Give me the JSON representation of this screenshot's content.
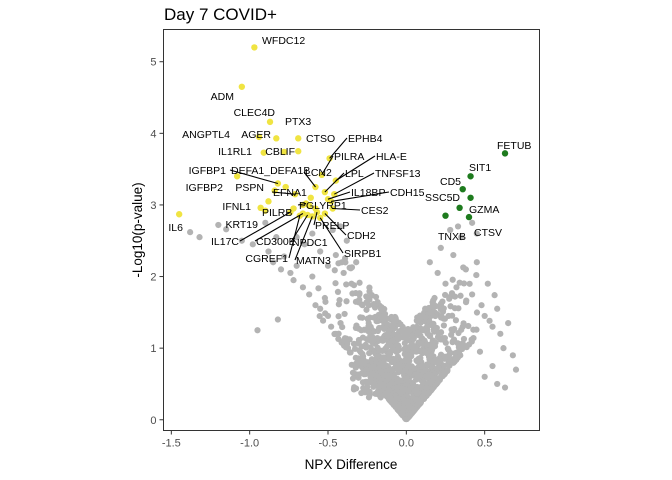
{
  "chart_data": {
    "type": "scatter",
    "title": "Day 7 COVID+",
    "xlabel": "NPX Difference",
    "ylabel": "-Log10(p-value)",
    "xlim": [
      -1.55,
      0.85
    ],
    "ylim": [
      -0.15,
      5.45
    ],
    "x_ticks": [
      -1.5,
      -1.0,
      -0.5,
      0.0,
      0.5
    ],
    "x_tick_labels": [
      "-1.5",
      "-1.0",
      "-0.5",
      "0.0",
      "0.5"
    ],
    "y_ticks": [
      0,
      1,
      2,
      3,
      4,
      5
    ],
    "y_tick_labels": [
      "0",
      "1",
      "2",
      "3",
      "4",
      "5"
    ],
    "grid": false,
    "legend": "none",
    "colors": {
      "nonsignificant": "#b3b3b3",
      "down": "#f0e442",
      "up": "#1e7b1e"
    },
    "series": [
      {
        "category": "down",
        "points": [
          {
            "x": -0.97,
            "y": 5.2,
            "label": "WFDC12"
          },
          {
            "x": -1.05,
            "y": 4.65,
            "label": "ADM"
          },
          {
            "x": -0.87,
            "y": 4.16,
            "label": "CLEC4D"
          },
          {
            "x": -0.69,
            "y": 3.93,
            "label": "PTX3"
          },
          {
            "x": -0.83,
            "y": 3.93,
            "label": "AGER"
          },
          {
            "x": -0.94,
            "y": 3.95,
            "label": "ANGPTL4"
          },
          {
            "x": -0.69,
            "y": 3.75,
            "label": "CTSO"
          },
          {
            "x": -0.78,
            "y": 3.74,
            "label": "CBLIF"
          },
          {
            "x": -0.91,
            "y": 3.73,
            "label": "IL1RL1"
          },
          {
            "x": -0.49,
            "y": 3.65,
            "label": "EPHB4"
          },
          {
            "x": -0.54,
            "y": 3.42,
            "label": "PILRA"
          },
          {
            "x": -0.45,
            "y": 3.34,
            "label": "HLA-E"
          },
          {
            "x": -0.58,
            "y": 3.25,
            "label": "LCN2"
          },
          {
            "x": -0.52,
            "y": 3.18,
            "label": "LPL"
          },
          {
            "x": -0.46,
            "y": 3.15,
            "label": "TNFSF13"
          },
          {
            "x": -1.08,
            "y": 3.4,
            "label": "IGFBP1"
          },
          {
            "x": -0.82,
            "y": 3.3,
            "label": "DEFA1_DEFA1B"
          },
          {
            "x": -0.77,
            "y": 3.25,
            "label": "IGFBP2"
          },
          {
            "x": -0.84,
            "y": 3.2,
            "label": "PSPN"
          },
          {
            "x": -0.71,
            "y": 3.15,
            "label": "EFNA1"
          },
          {
            "x": -0.5,
            "y": 3.08,
            "label": "IL18BP"
          },
          {
            "x": -0.48,
            "y": 3.05,
            "label": "CDH15"
          },
          {
            "x": -0.88,
            "y": 3.05,
            "label": "IFNL1"
          },
          {
            "x": -0.64,
            "y": 3.02,
            "label": "PGLYRP1"
          },
          {
            "x": -0.72,
            "y": 2.95,
            "label": "PILRB"
          },
          {
            "x": -0.47,
            "y": 2.95,
            "label": "CES2"
          },
          {
            "x": -0.9,
            "y": 2.92,
            "label": "KRT19"
          },
          {
            "x": -1.45,
            "y": 2.87,
            "label": "IL6"
          },
          {
            "x": -0.57,
            "y": 2.9,
            "label": "PRELP"
          },
          {
            "x": -0.66,
            "y": 2.88,
            "label": "CD300E"
          },
          {
            "x": -0.52,
            "y": 2.88,
            "label": "CDH2"
          },
          {
            "x": -0.63,
            "y": 2.86,
            "label": "NPDC1"
          },
          {
            "x": -0.74,
            "y": 2.9,
            "label": "IL17C"
          },
          {
            "x": -0.6,
            "y": 2.84,
            "label": "MATN3"
          },
          {
            "x": -0.55,
            "y": 2.82,
            "label": "SIRPB1"
          },
          {
            "x": -0.68,
            "y": 2.85,
            "label": "CGREF1"
          },
          {
            "x": -0.93,
            "y": 2.96,
            "label": ""
          },
          {
            "x": -0.62,
            "y": 2.99,
            "label": ""
          },
          {
            "x": -0.66,
            "y": 3.0,
            "label": ""
          },
          {
            "x": -0.58,
            "y": 2.95,
            "label": ""
          },
          {
            "x": -0.61,
            "y": 3.1,
            "label": ""
          }
        ]
      },
      {
        "category": "up",
        "points": [
          {
            "x": 0.63,
            "y": 3.72,
            "label": "FETUB"
          },
          {
            "x": 0.41,
            "y": 3.4,
            "label": "SIT1"
          },
          {
            "x": 0.36,
            "y": 3.22,
            "label": "CD5"
          },
          {
            "x": 0.41,
            "y": 3.1,
            "label": "SSC5D"
          },
          {
            "x": 0.34,
            "y": 2.96,
            "label": "GZMA"
          },
          {
            "x": 0.25,
            "y": 2.85,
            "label": "TNXB"
          },
          {
            "x": 0.4,
            "y": 2.83,
            "label": "CTSV"
          }
        ]
      }
    ]
  }
}
